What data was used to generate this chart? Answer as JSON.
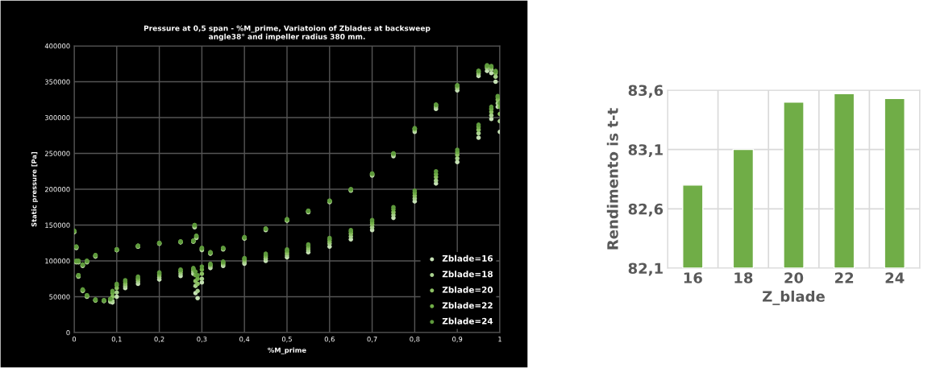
{
  "chart_data": [
    {
      "type": "scatter",
      "title": "Pressure at 0,5 span - %M_prime, Variatoion of Zblades at backsweep\nangle38° and impeller radius 380 mm.",
      "xlabel": "%M_prime",
      "ylabel": "Static pressure [Pa]",
      "x": [
        0,
        0.005,
        0.01,
        0.02,
        0.03,
        0.05,
        0.1,
        0.15,
        0.2,
        0.25,
        0.28,
        0.283,
        0.287,
        0.3,
        0.32,
        0.35,
        0.4,
        0.45,
        0.5,
        0.55,
        0.6,
        0.65,
        0.7,
        0.75,
        0.8,
        0.85,
        0.9,
        0.95,
        0.97,
        0.98,
        0.99,
        1.0,
        0.995,
        0.98,
        0.95,
        0.9,
        0.85,
        0.8,
        0.75,
        0.7,
        0.65,
        0.6,
        0.55,
        0.5,
        0.45,
        0.4,
        0.35,
        0.32,
        0.3,
        0.29,
        0.285,
        0.28,
        0.25,
        0.2,
        0.15,
        0.12,
        0.1,
        0.09,
        0.085,
        0.07,
        0.05,
        0.03,
        0.02,
        0.01,
        0.005
      ],
      "series": [
        {
          "name": "Zblade=16",
          "color": "#c5e0b4",
          "values": [
            140000,
            118000,
            98000,
            93000,
            98000,
            106000,
            115000,
            120000,
            124000,
            126000,
            127000,
            147000,
            132000,
            115000,
            110000,
            116000,
            131000,
            143000,
            156000,
            168000,
            182000,
            198000,
            219000,
            246000,
            280000,
            312000,
            338000,
            358000,
            365000,
            362000,
            350000,
            280000,
            315000,
            298000,
            272000,
            238000,
            208000,
            183000,
            160000,
            143000,
            130000,
            120000,
            112000,
            105000,
            100000,
            96000,
            93000,
            90000,
            70000,
            48000,
            55000,
            82000,
            79000,
            74000,
            68000,
            62000,
            50000,
            42000,
            43000,
            44000,
            45000,
            50000,
            58000,
            78000,
            98000
          ]
        },
        {
          "name": "Zblade=18",
          "color": "#a9d18e",
          "values": [
            141000,
            119000,
            99000,
            94000,
            99000,
            107000,
            115000,
            120000,
            124000,
            126000,
            127000,
            148000,
            133000,
            116000,
            111000,
            117000,
            132000,
            144000,
            157000,
            169000,
            183000,
            199000,
            220000,
            248000,
            282000,
            315000,
            341000,
            361000,
            369000,
            367000,
            357000,
            295000,
            320000,
            303000,
            278000,
            243000,
            212000,
            187000,
            164000,
            147000,
            134000,
            124000,
            115000,
            108000,
            103000,
            98000,
            95000,
            92000,
            75000,
            58000,
            65000,
            85000,
            82000,
            77000,
            71000,
            65000,
            56000,
            44000,
            44000,
            44000,
            45000,
            51000,
            59000,
            79000,
            99000
          ]
        },
        {
          "name": "Zblade=20",
          "color": "#8cc063",
          "values": [
            141000,
            119000,
            99000,
            94000,
            99000,
            107000,
            116000,
            121000,
            125000,
            127000,
            128000,
            149000,
            134000,
            117000,
            111000,
            117000,
            132000,
            145000,
            157000,
            169000,
            183000,
            199000,
            221000,
            249000,
            284000,
            317000,
            343000,
            363000,
            371000,
            370000,
            362000,
            305000,
            325000,
            308000,
            283000,
            248000,
            217000,
            191000,
            168000,
            151000,
            138000,
            127000,
            118000,
            111000,
            106000,
            101000,
            97000,
            94000,
            82000,
            68000,
            72000,
            88000,
            85000,
            80000,
            74000,
            68000,
            62000,
            50000,
            46000,
            45000,
            45000,
            51000,
            59000,
            79000,
            99000
          ]
        },
        {
          "name": "Zblade=22",
          "color": "#70ad47",
          "values": [
            142000,
            120000,
            100000,
            95000,
            100000,
            108000,
            116000,
            121000,
            125000,
            127000,
            128000,
            150000,
            135000,
            118000,
            112000,
            118000,
            133000,
            145000,
            158000,
            170000,
            184000,
            200000,
            222000,
            250000,
            285000,
            318000,
            345000,
            365000,
            372000,
            371000,
            364000,
            315000,
            328000,
            312000,
            287000,
            252000,
            221000,
            195000,
            172000,
            154000,
            141000,
            130000,
            121000,
            114000,
            108000,
            103000,
            98000,
            95000,
            88000,
            75000,
            80000,
            89000,
            87000,
            82000,
            76000,
            71000,
            66000,
            55000,
            47000,
            45000,
            46000,
            52000,
            60000,
            80000,
            100000
          ]
        },
        {
          "name": "Zblade=24",
          "color": "#5e9a3c",
          "values": [
            142000,
            120000,
            100000,
            95000,
            100000,
            108000,
            116000,
            121000,
            125000,
            127000,
            128000,
            150000,
            135000,
            118000,
            112000,
            118000,
            133000,
            145000,
            158000,
            170000,
            184000,
            200000,
            222000,
            250000,
            285000,
            318000,
            345000,
            365000,
            373000,
            372000,
            365000,
            320000,
            330000,
            315000,
            290000,
            255000,
            225000,
            198000,
            175000,
            157000,
            143000,
            132000,
            123000,
            116000,
            110000,
            104000,
            99000,
            96000,
            92000,
            80000,
            85000,
            90000,
            88000,
            84000,
            78000,
            73000,
            68000,
            58000,
            47000,
            45000,
            46000,
            52000,
            60000,
            80000,
            100000
          ]
        }
      ],
      "xlim": [
        0,
        1
      ],
      "xticks": [
        0,
        {
          "value": 0.1,
          "label": "0,1"
        },
        {
          "value": 0.2,
          "label": "0,2"
        },
        {
          "value": 0.3,
          "label": "0,3"
        },
        {
          "value": 0.4,
          "label": "0,4"
        },
        {
          "value": 0.5,
          "label": "0,5"
        },
        {
          "value": 0.6,
          "label": "0,6"
        },
        {
          "value": 0.7,
          "label": "0,7"
        },
        {
          "value": 0.8,
          "label": "0,8"
        },
        {
          "value": 0.9,
          "label": "0,9"
        },
        1
      ],
      "ylim": [
        0,
        400000
      ],
      "yticks": [
        0,
        50000,
        100000,
        150000,
        200000,
        250000,
        300000,
        350000,
        400000
      ],
      "grid": true,
      "legend": "bottom right",
      "marker": "circle"
    },
    {
      "type": "bar",
      "xlabel": "Z_blade",
      "ylabel": "Rendimento is t-t",
      "categories": [
        "16",
        "18",
        "20",
        "22",
        "24"
      ],
      "values": [
        82.8,
        83.1,
        83.5,
        83.57,
        83.53
      ],
      "color": "#70ad47",
      "ylim": [
        82.1,
        83.6
      ],
      "yticks": [
        {
          "value": 82.1,
          "label": "82,1"
        },
        {
          "value": 82.6,
          "label": "82,6"
        },
        {
          "value": 83.1,
          "label": "83,1"
        },
        {
          "value": 83.6,
          "label": "83,6"
        }
      ],
      "grid": true
    }
  ]
}
